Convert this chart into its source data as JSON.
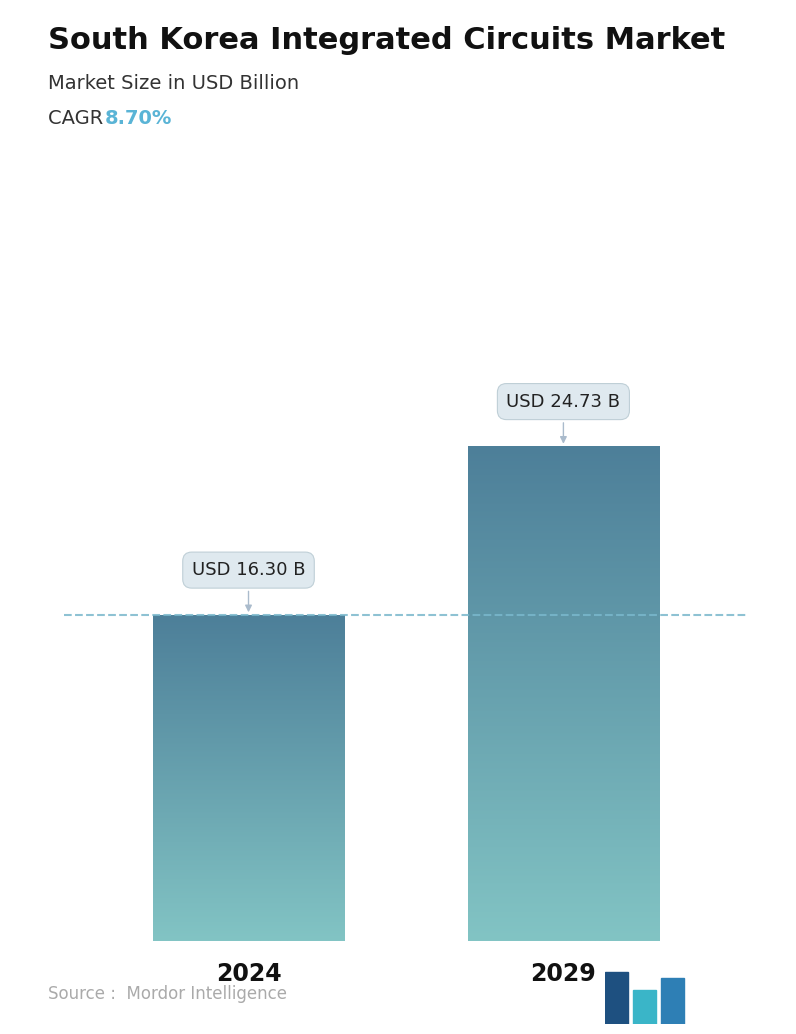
{
  "title": "South Korea Integrated Circuits Market",
  "subtitle": "Market Size in USD Billion",
  "cagr_label": "CAGR",
  "cagr_value": "8.70%",
  "cagr_color": "#5ab4d6",
  "categories": [
    "2024",
    "2029"
  ],
  "values": [
    16.3,
    24.73
  ],
  "bar_labels": [
    "USD 16.30 B",
    "USD 24.73 B"
  ],
  "bar_top_color": "#4d7f99",
  "bar_bottom_color": "#82c4c4",
  "dashed_line_color": "#7ab8cc",
  "dashed_line_value": 16.3,
  "source_text": "Source :  Mordor Intelligence",
  "source_color": "#aaaaaa",
  "background_color": "#ffffff",
  "title_fontsize": 22,
  "subtitle_fontsize": 14,
  "cagr_fontsize": 14,
  "tick_fontsize": 17,
  "label_fontsize": 13,
  "source_fontsize": 12,
  "ylim_max": 30,
  "bar_width": 0.28,
  "x_positions": [
    0.27,
    0.73
  ]
}
